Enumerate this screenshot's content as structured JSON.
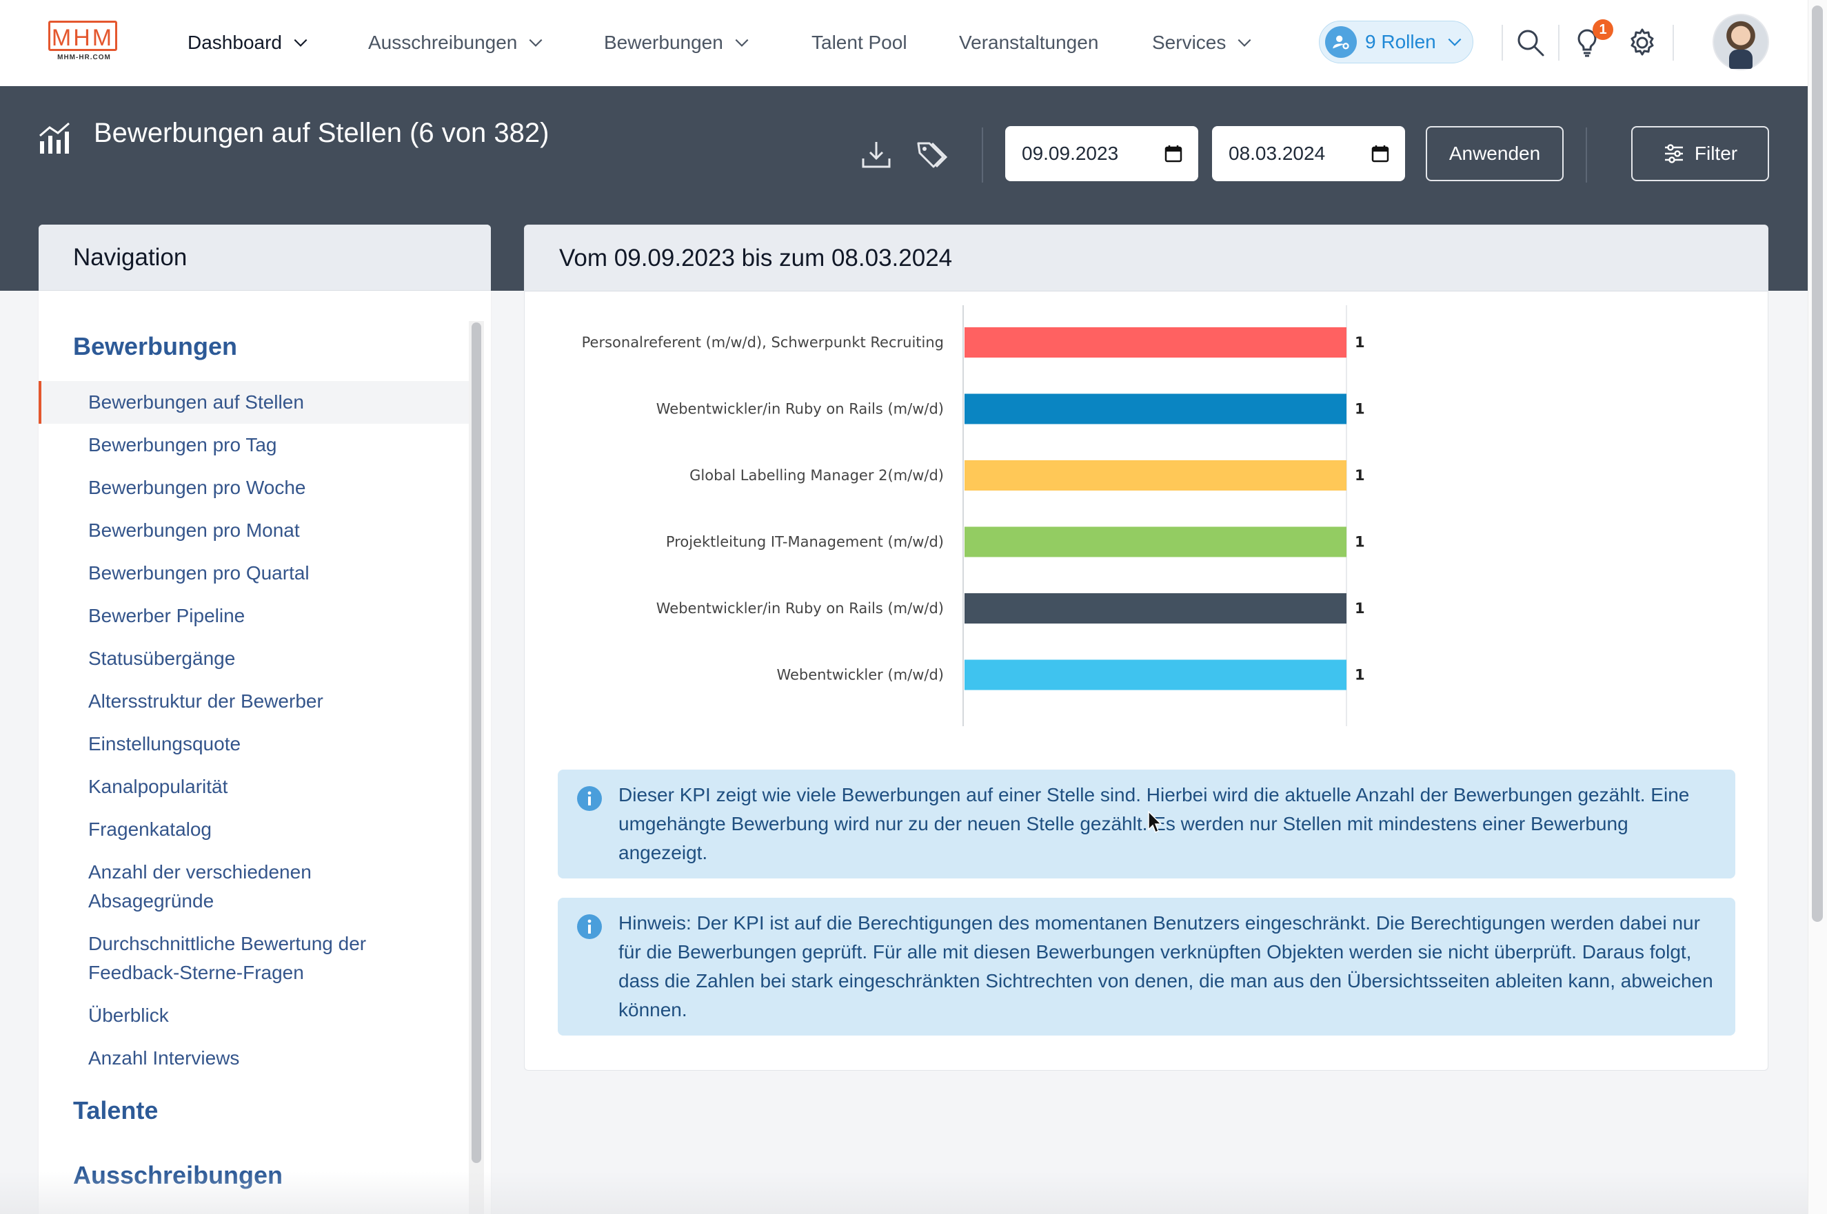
{
  "logo": {
    "text": "MHM",
    "subtext": "MHM-HR.COM"
  },
  "topnav": {
    "items": [
      {
        "label": "Dashboard",
        "dropdown": true
      },
      {
        "label": "Ausschreibungen",
        "dropdown": true
      },
      {
        "label": "Bewerbungen",
        "dropdown": true
      },
      {
        "label": "Talent Pool",
        "dropdown": false
      },
      {
        "label": "Veranstaltungen",
        "dropdown": false
      },
      {
        "label": "Services",
        "dropdown": true
      }
    ],
    "roles_label": "9 Rollen",
    "notification_count": "1",
    "icons": [
      "search-icon",
      "lightbulb-icon",
      "gear-icon"
    ]
  },
  "header": {
    "title": "Bewerbungen auf Stellen (6 von 382)",
    "date_from": "09.09.2023",
    "date_to": "08.03.2024",
    "apply_label": "Anwenden",
    "filter_label": "Filter"
  },
  "navigation": {
    "title": "Navigation",
    "sections": [
      {
        "title": "Bewerbungen",
        "items": [
          "Bewerbungen auf Stellen",
          "Bewerbungen pro Tag",
          "Bewerbungen pro Woche",
          "Bewerbungen pro Monat",
          "Bewerbungen pro Quartal",
          "Bewerber Pipeline",
          "Statusübergänge",
          "Altersstruktur der Bewerber",
          "Einstellungsquote",
          "Kanalpopularität",
          "Fragenkatalog",
          "Anzahl der verschiedenen Absagegründe",
          "Durchschnittliche Bewertung der Feedback-Sterne-Fragen",
          "Überblick",
          "Anzahl Interviews"
        ]
      },
      {
        "title": "Talente",
        "items": []
      },
      {
        "title": "Ausschreibungen",
        "items": []
      }
    ],
    "active_item": "Bewerbungen auf Stellen"
  },
  "main": {
    "period_title": "Vom 09.09.2023 bis zum 08.03.2024",
    "info_texts": [
      "Dieser KPI zeigt wie viele Bewerbungen auf einer Stelle sind. Hierbei wird die aktuelle Anzahl der Bewerbungen gezählt. Eine umgehängte Bewerbung wird nur zu der neuen Stelle gezählt. Es werden nur Stellen mit mindestens einer Bewerbung angezeigt.",
      "Hinweis: Der KPI ist auf die Berechtigungen des momentanen Benutzers eingeschränkt. Die Berechtigungen werden dabei nur für die Bewerbungen geprüft. Für alle mit diesen Bewerbungen verknüpften Objekten werden sie nicht überprüft. Daraus folgt, dass die Zahlen bei stark eingeschränkten Sichtrechten von denen, die man aus den Übersichtsseiten ableiten kann, abweichen können."
    ]
  },
  "chart_data": {
    "type": "bar",
    "orientation": "horizontal",
    "categories": [
      "Personalreferent (m/w/d), Schwerpunkt Recruiting",
      "Webentwickler/in Ruby on Rails (m/w/d)",
      "Global Labelling Manager 2(m/w/d)",
      "Projektleitung IT-Management (m/w/d)",
      "Webentwickler/in Ruby on Rails (m/w/d)",
      "Webentwickler (m/w/d)"
    ],
    "values": [
      1,
      1,
      1,
      1,
      1,
      1
    ],
    "colors": [
      "#ff6161",
      "#0a85c2",
      "#ffc857",
      "#93cc62",
      "#435160",
      "#3fc3ef"
    ],
    "xlim": [
      0,
      1
    ],
    "grid": false,
    "title": "",
    "xlabel": "",
    "ylabel": ""
  }
}
